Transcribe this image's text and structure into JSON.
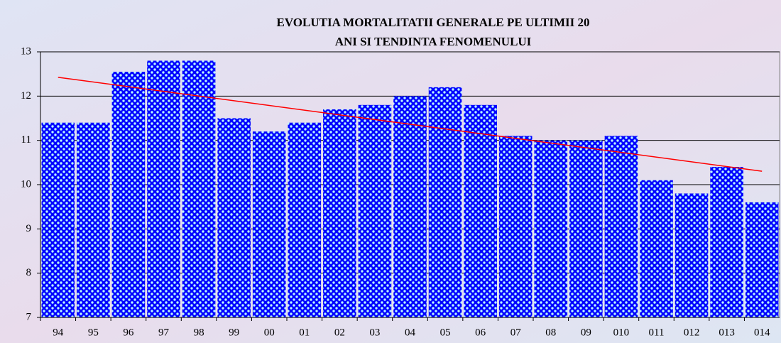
{
  "chart_data": {
    "type": "bar",
    "title": [
      "EVOLUTIA MORTALITATII GENERALE PE ULTIMII 20",
      "ANI SI TENDINTA FENOMENULUI"
    ],
    "categories": [
      "94",
      "95",
      "96",
      "97",
      "98",
      "99",
      "00",
      "01",
      "02",
      "03",
      "04",
      "05",
      "06",
      "07",
      "08",
      "09",
      "010",
      "011",
      "012",
      "013",
      "014"
    ],
    "values": [
      11.4,
      11.4,
      12.55,
      12.8,
      12.8,
      11.5,
      11.2,
      11.4,
      11.7,
      11.8,
      12.0,
      12.2,
      11.8,
      11.1,
      11.0,
      11.0,
      11.1,
      10.1,
      9.8,
      10.4,
      9.6
    ],
    "color": "#0000ff",
    "ylim": [
      7,
      13
    ],
    "yticks": [
      7,
      8,
      9,
      10,
      11,
      12,
      13
    ],
    "grid": true,
    "trendline": true,
    "trendline_color": "#ff0000"
  }
}
